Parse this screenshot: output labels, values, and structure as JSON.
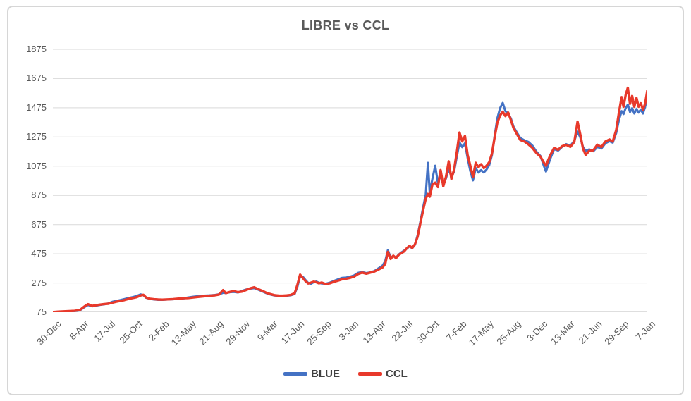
{
  "chart_data": {
    "type": "line",
    "title": "LIBRE vs CCL",
    "xlabel": "",
    "ylabel": "",
    "x_tick_labels": [
      "30-Dec",
      "8-Apr",
      "17-Jul",
      "25-Oct",
      "2-Feb",
      "13-May",
      "21-Aug",
      "29-Nov",
      "9-Mar",
      "17-Jun",
      "25-Sep",
      "3-Jan",
      "13-Apr",
      "22-Jul",
      "30-Oct",
      "7-Feb",
      "17-May",
      "25-Aug",
      "3-Dec",
      "13-Mar",
      "21-Jun",
      "29-Sep",
      "7-Jan"
    ],
    "y_ticks": [
      75,
      275,
      475,
      675,
      875,
      1075,
      1275,
      1475,
      1675,
      1875
    ],
    "ylim": [
      75,
      1875
    ],
    "grid": true,
    "legend_position": "bottom",
    "colors": {
      "text": "#595959",
      "grid": "#d9d9d9",
      "axis": "#bcbcbc",
      "plot_border": "#d9d9d9"
    },
    "series": [
      {
        "name": "BLUE",
        "color": "#4472C4"
      },
      {
        "name": "CCL",
        "color": "#E8392B"
      }
    ],
    "points_note": "Each point is [x_position_in_tick_index_units_0_to_22, BLUE_value, CCL_value]; values estimated from plot",
    "points": [
      [
        0,
        75,
        76
      ],
      [
        0.2,
        78,
        79
      ],
      [
        0.4,
        80,
        81
      ],
      [
        0.6,
        81,
        82
      ],
      [
        0.8,
        83,
        84
      ],
      [
        1,
        88,
        90
      ],
      [
        1.15,
        108,
        112
      ],
      [
        1.3,
        124,
        130
      ],
      [
        1.45,
        115,
        118
      ],
      [
        1.6,
        120,
        123
      ],
      [
        1.75,
        125,
        127
      ],
      [
        1.9,
        129,
        131
      ],
      [
        2.05,
        135,
        133
      ],
      [
        2.2,
        146,
        140
      ],
      [
        2.35,
        152,
        147
      ],
      [
        2.5,
        158,
        152
      ],
      [
        2.65,
        165,
        158
      ],
      [
        2.8,
        172,
        166
      ],
      [
        2.95,
        178,
        172
      ],
      [
        3.1,
        186,
        178
      ],
      [
        3.25,
        197,
        190
      ],
      [
        3.35,
        192,
        194
      ],
      [
        3.45,
        174,
        176
      ],
      [
        3.6,
        166,
        167
      ],
      [
        3.75,
        162,
        164
      ],
      [
        3.9,
        160,
        162
      ],
      [
        4.05,
        160,
        161
      ],
      [
        4.25,
        162,
        163
      ],
      [
        4.45,
        164,
        165
      ],
      [
        4.65,
        167,
        168
      ],
      [
        4.85,
        170,
        171
      ],
      [
        5,
        176,
        172
      ],
      [
        5.2,
        181,
        176
      ],
      [
        5.4,
        185,
        180
      ],
      [
        5.6,
        188,
        184
      ],
      [
        5.8,
        190,
        188
      ],
      [
        6,
        193,
        191
      ],
      [
        6.15,
        198,
        196
      ],
      [
        6.3,
        208,
        226
      ],
      [
        6.4,
        206,
        206
      ],
      [
        6.55,
        212,
        214
      ],
      [
        6.7,
        214,
        219
      ],
      [
        6.85,
        210,
        212
      ],
      [
        7,
        221,
        216
      ],
      [
        7.15,
        230,
        227
      ],
      [
        7.3,
        236,
        238
      ],
      [
        7.45,
        240,
        246
      ],
      [
        7.6,
        230,
        233
      ],
      [
        7.75,
        218,
        221
      ],
      [
        7.9,
        206,
        208
      ],
      [
        8.05,
        196,
        199
      ],
      [
        8.2,
        190,
        192
      ],
      [
        8.35,
        187,
        189
      ],
      [
        8.5,
        186,
        188
      ],
      [
        8.65,
        188,
        190
      ],
      [
        8.8,
        191,
        193
      ],
      [
        8.95,
        200,
        205
      ],
      [
        9.05,
        250,
        262
      ],
      [
        9.15,
        322,
        332
      ],
      [
        9.25,
        318,
        310
      ],
      [
        9.35,
        295,
        288
      ],
      [
        9.45,
        275,
        272
      ],
      [
        9.55,
        270,
        277
      ],
      [
        9.65,
        280,
        284
      ],
      [
        9.75,
        285,
        280
      ],
      [
        9.85,
        276,
        273
      ],
      [
        9.95,
        272,
        278
      ],
      [
        10.1,
        270,
        267
      ],
      [
        10.25,
        277,
        273
      ],
      [
        10.4,
        289,
        283
      ],
      [
        10.55,
        300,
        291
      ],
      [
        10.7,
        310,
        300
      ],
      [
        10.85,
        312,
        304
      ],
      [
        11,
        318,
        310
      ],
      [
        11.15,
        327,
        319
      ],
      [
        11.3,
        345,
        337
      ],
      [
        11.45,
        350,
        346
      ],
      [
        11.6,
        343,
        339
      ],
      [
        11.75,
        348,
        346
      ],
      [
        11.9,
        357,
        354
      ],
      [
        12.05,
        375,
        367
      ],
      [
        12.2,
        394,
        382
      ],
      [
        12.3,
        424,
        405
      ],
      [
        12.4,
        500,
        488
      ],
      [
        12.5,
        448,
        440
      ],
      [
        12.6,
        460,
        462
      ],
      [
        12.7,
        448,
        445
      ],
      [
        12.8,
        470,
        468
      ],
      [
        12.9,
        484,
        480
      ],
      [
        13,
        497,
        491
      ],
      [
        13.1,
        511,
        513
      ],
      [
        13.2,
        526,
        529
      ],
      [
        13.3,
        513,
        515
      ],
      [
        13.4,
        537,
        540
      ],
      [
        13.5,
        602,
        592
      ],
      [
        13.6,
        692,
        682
      ],
      [
        13.7,
        790,
        772
      ],
      [
        13.8,
        880,
        852
      ],
      [
        13.88,
        1098,
        885
      ],
      [
        13.95,
        892,
        866
      ],
      [
        14.05,
        992,
        952
      ],
      [
        14.15,
        1078,
        962
      ],
      [
        14.25,
        962,
        932
      ],
      [
        14.35,
        1012,
        1048
      ],
      [
        14.45,
        948,
        938
      ],
      [
        14.55,
        992,
        1002
      ],
      [
        14.65,
        1058,
        1108
      ],
      [
        14.75,
        1002,
        988
      ],
      [
        14.85,
        1038,
        1052
      ],
      [
        14.95,
        1142,
        1172
      ],
      [
        15.05,
        1238,
        1305
      ],
      [
        15.15,
        1205,
        1245
      ],
      [
        15.25,
        1232,
        1282
      ],
      [
        15.35,
        1132,
        1152
      ],
      [
        15.45,
        1042,
        1078
      ],
      [
        15.55,
        978,
        1002
      ],
      [
        15.65,
        1062,
        1098
      ],
      [
        15.75,
        1032,
        1068
      ],
      [
        15.85,
        1048,
        1088
      ],
      [
        15.95,
        1032,
        1062
      ],
      [
        16.05,
        1052,
        1078
      ],
      [
        16.15,
        1082,
        1102
      ],
      [
        16.25,
        1152,
        1162
      ],
      [
        16.35,
        1282,
        1272
      ],
      [
        16.45,
        1402,
        1372
      ],
      [
        16.55,
        1472,
        1422
      ],
      [
        16.65,
        1508,
        1448
      ],
      [
        16.75,
        1452,
        1418
      ],
      [
        16.85,
        1436,
        1442
      ],
      [
        16.95,
        1402,
        1392
      ],
      [
        17.05,
        1345,
        1336
      ],
      [
        17.15,
        1312,
        1302
      ],
      [
        17.3,
        1268,
        1254
      ],
      [
        17.45,
        1252,
        1244
      ],
      [
        17.6,
        1241,
        1224
      ],
      [
        17.75,
        1216,
        1200
      ],
      [
        17.9,
        1174,
        1164
      ],
      [
        18.05,
        1144,
        1140
      ],
      [
        18.15,
        1088,
        1106
      ],
      [
        18.25,
        1038,
        1078
      ],
      [
        18.4,
        1122,
        1148
      ],
      [
        18.55,
        1192,
        1200
      ],
      [
        18.7,
        1182,
        1188
      ],
      [
        18.85,
        1208,
        1212
      ],
      [
        19,
        1226,
        1221
      ],
      [
        19.15,
        1213,
        1207
      ],
      [
        19.3,
        1249,
        1241
      ],
      [
        19.42,
        1312,
        1380
      ],
      [
        19.52,
        1272,
        1292
      ],
      [
        19.62,
        1206,
        1196
      ],
      [
        19.72,
        1180,
        1152
      ],
      [
        19.85,
        1190,
        1180
      ],
      [
        20,
        1177,
        1184
      ],
      [
        20.15,
        1206,
        1222
      ],
      [
        20.3,
        1196,
        1206
      ],
      [
        20.45,
        1232,
        1244
      ],
      [
        20.6,
        1246,
        1258
      ],
      [
        20.72,
        1236,
        1244
      ],
      [
        20.85,
        1302,
        1322
      ],
      [
        20.95,
        1392,
        1442
      ],
      [
        21.05,
        1452,
        1548
      ],
      [
        21.12,
        1432,
        1482
      ],
      [
        21.2,
        1472,
        1562
      ],
      [
        21.28,
        1496,
        1612
      ],
      [
        21.36,
        1446,
        1502
      ],
      [
        21.44,
        1472,
        1556
      ],
      [
        21.52,
        1436,
        1482
      ],
      [
        21.6,
        1466,
        1542
      ],
      [
        21.68,
        1442,
        1482
      ],
      [
        21.76,
        1462,
        1506
      ],
      [
        21.84,
        1436,
        1462
      ],
      [
        21.92,
        1482,
        1502
      ],
      [
        22,
        1546,
        1592
      ]
    ]
  }
}
